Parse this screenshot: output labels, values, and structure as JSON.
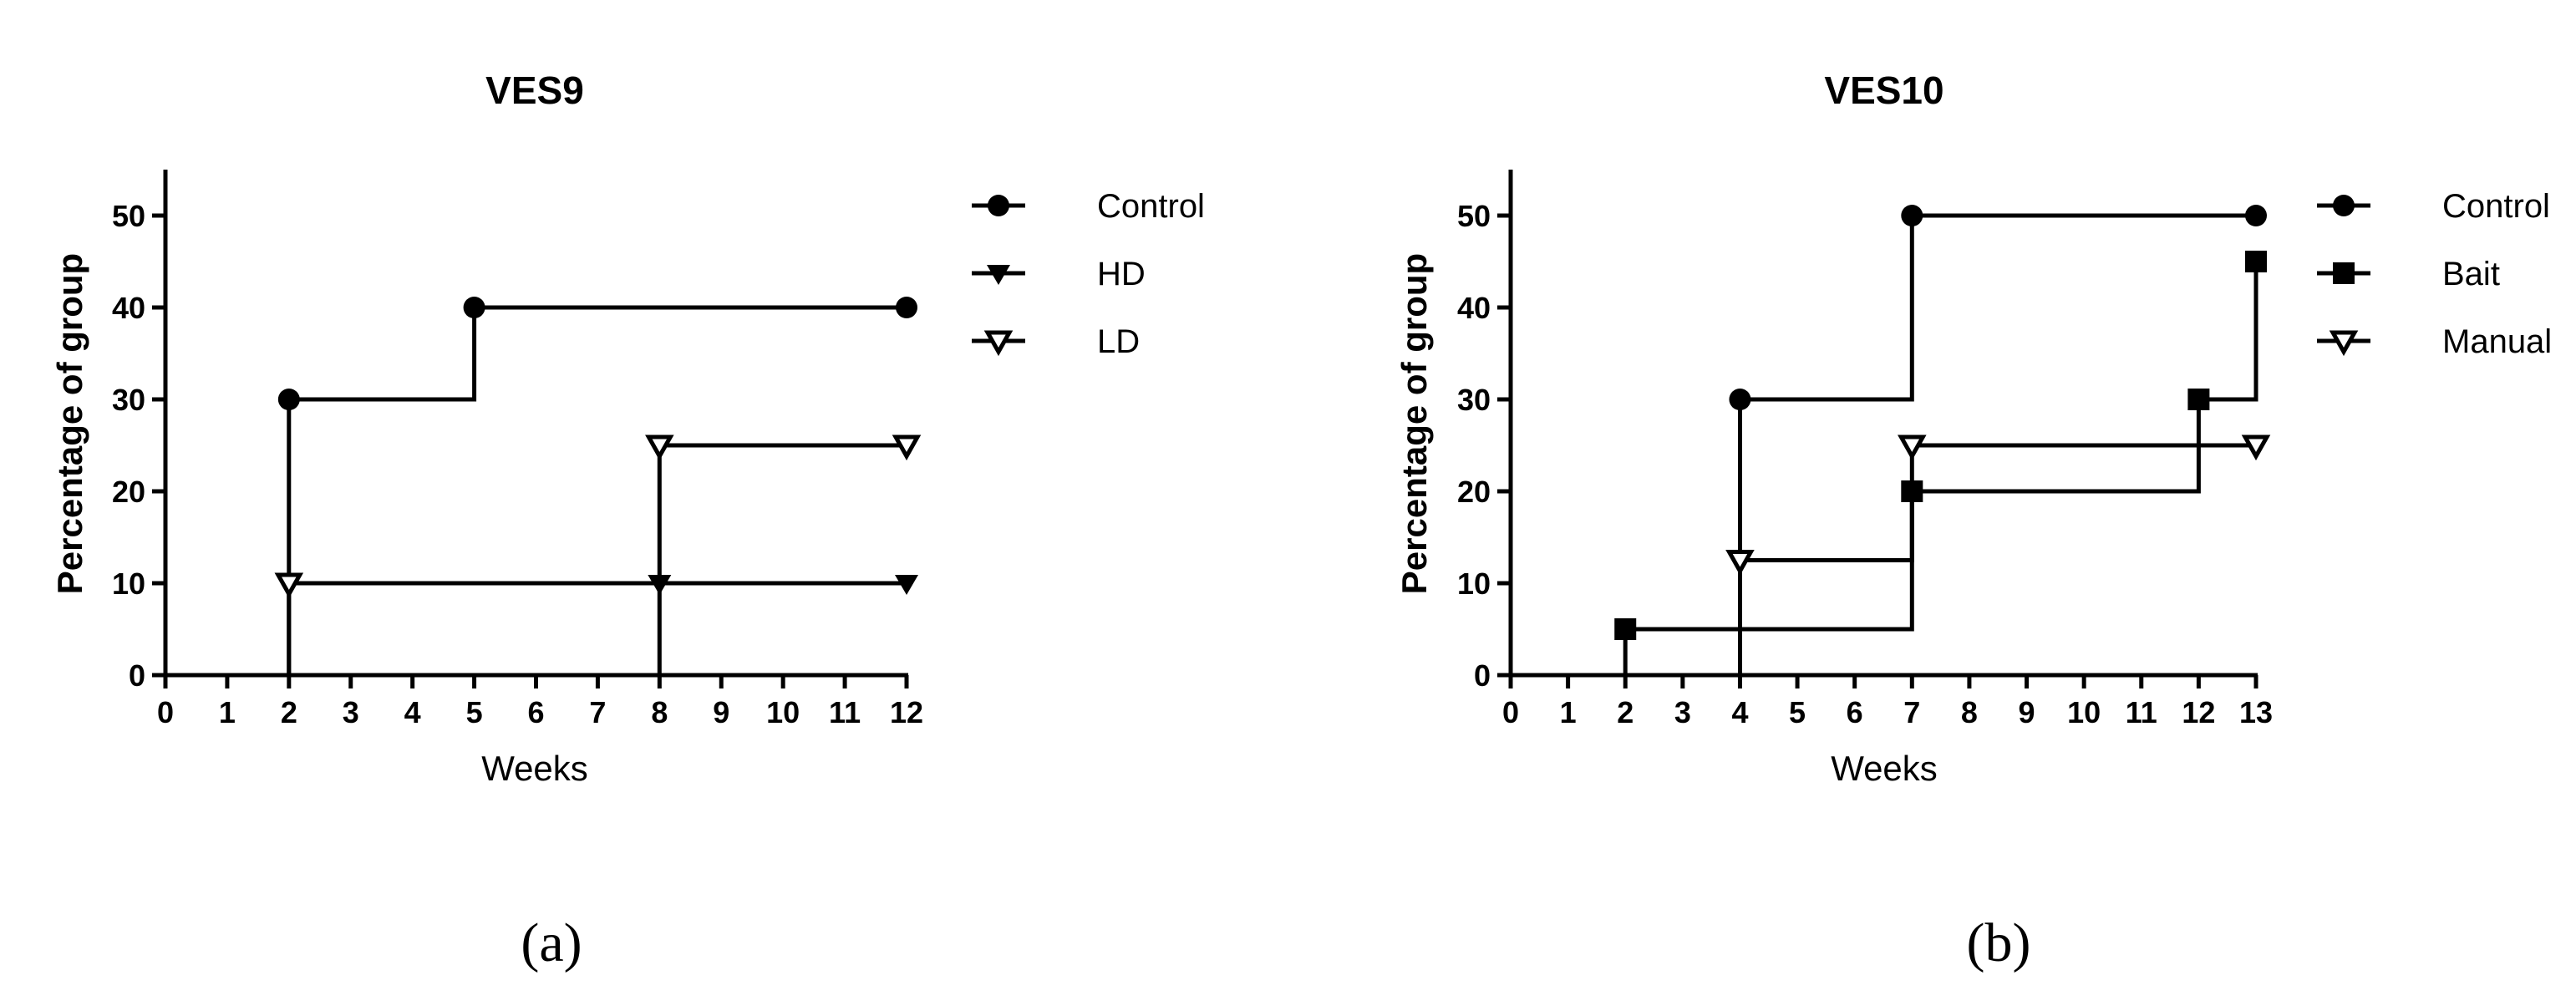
{
  "chart_data": [
    {
      "type": "line",
      "step": true,
      "title": "VES9",
      "panel_label": "(a)",
      "xlabel": "Weeks",
      "ylabel": "Percentage of group",
      "xlim": [
        0,
        12
      ],
      "ylim": [
        0,
        55
      ],
      "xticks": [
        0,
        1,
        2,
        3,
        4,
        5,
        6,
        7,
        8,
        9,
        10,
        11,
        12
      ],
      "yticks": [
        0,
        10,
        20,
        30,
        40,
        50
      ],
      "legend_position": "right",
      "series": [
        {
          "name": "Control",
          "marker": "circle-filled",
          "points": [
            [
              2,
              0
            ],
            [
              2,
              30
            ],
            [
              5,
              30
            ],
            [
              5,
              40
            ],
            [
              12,
              40
            ]
          ],
          "marker_points": [
            [
              2,
              30
            ],
            [
              5,
              40
            ],
            [
              12,
              40
            ]
          ]
        },
        {
          "name": "HD",
          "marker": "triangle-down-filled",
          "points": [
            [
              2,
              0
            ],
            [
              2,
              10
            ],
            [
              12,
              10
            ]
          ],
          "marker_points": [
            [
              2,
              10
            ],
            [
              8,
              10
            ],
            [
              12,
              10
            ]
          ]
        },
        {
          "name": "LD",
          "marker": "triangle-down-open",
          "points": [
            [
              8,
              0
            ],
            [
              8,
              25
            ],
            [
              12,
              25
            ]
          ],
          "marker_points": [
            [
              2,
              10
            ],
            [
              8,
              25
            ],
            [
              12,
              25
            ]
          ]
        }
      ]
    },
    {
      "type": "line",
      "step": true,
      "title": "VES10",
      "panel_label": "(b)",
      "xlabel": "Weeks",
      "ylabel": "Percentage of group",
      "xlim": [
        0,
        13
      ],
      "ylim": [
        0,
        55
      ],
      "xticks": [
        0,
        1,
        2,
        3,
        4,
        5,
        6,
        7,
        8,
        9,
        10,
        11,
        12,
        13
      ],
      "yticks": [
        0,
        10,
        20,
        30,
        40,
        50
      ],
      "legend_position": "right",
      "series": [
        {
          "name": "Control",
          "marker": "circle-filled",
          "points": [
            [
              4,
              0
            ],
            [
              4,
              30
            ],
            [
              7,
              30
            ],
            [
              7,
              50
            ],
            [
              13,
              50
            ]
          ],
          "marker_points": [
            [
              4,
              30
            ],
            [
              7,
              50
            ],
            [
              13,
              50
            ]
          ]
        },
        {
          "name": "Bait",
          "marker": "square-filled",
          "points": [
            [
              2,
              0
            ],
            [
              2,
              5
            ],
            [
              7,
              5
            ],
            [
              7,
              20
            ],
            [
              12,
              20
            ],
            [
              12,
              30
            ],
            [
              13,
              30
            ],
            [
              13,
              45
            ]
          ],
          "marker_points": [
            [
              2,
              5
            ],
            [
              7,
              20
            ],
            [
              12,
              30
            ],
            [
              13,
              45
            ]
          ]
        },
        {
          "name": "Manual",
          "marker": "triangle-down-open",
          "points": [
            [
              4,
              12.5
            ],
            [
              7,
              12.5
            ],
            [
              7,
              25
            ],
            [
              13,
              25
            ]
          ],
          "marker_points": [
            [
              4,
              12.5
            ],
            [
              7,
              25
            ],
            [
              13,
              25
            ]
          ]
        }
      ]
    }
  ]
}
